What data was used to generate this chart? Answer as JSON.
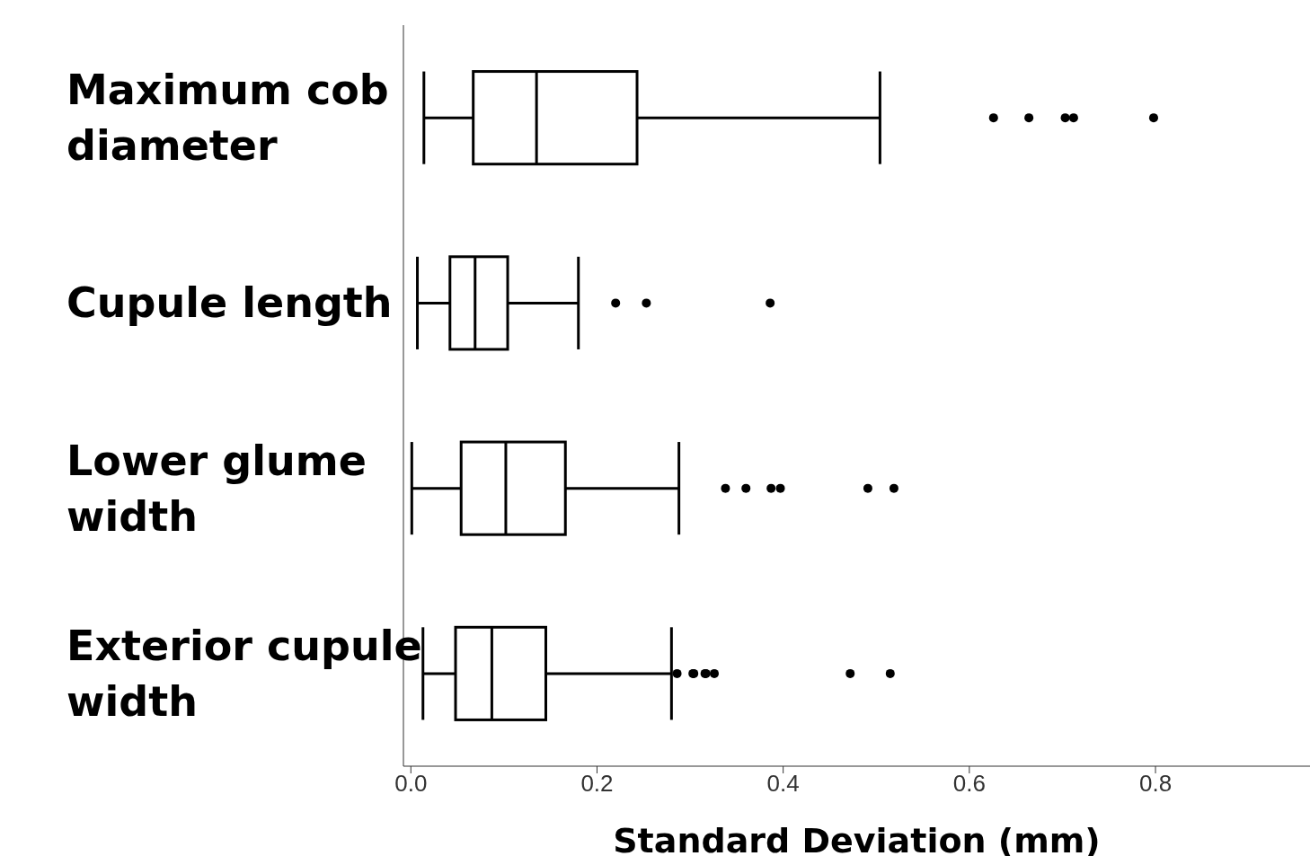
{
  "chart_data": {
    "type": "box",
    "orientation": "horizontal",
    "xlabel": "Standard Deviation (mm)",
    "color": "#000000",
    "categories": [
      "Maximum cob diameter",
      "Cupule length",
      "Lower glume width",
      "Exterior cupule width"
    ],
    "boxes": [
      {
        "low": 0.014,
        "q1": 0.067,
        "median": 0.135,
        "q3": 0.243,
        "high": 0.504,
        "outliers": [
          0.626,
          0.664,
          0.703,
          0.712,
          0.798
        ]
      },
      {
        "low": 0.007,
        "q1": 0.042,
        "median": 0.069,
        "q3": 0.104,
        "high": 0.18,
        "outliers": [
          0.22,
          0.253,
          0.386
        ]
      },
      {
        "low": 0.001,
        "q1": 0.054,
        "median": 0.102,
        "q3": 0.166,
        "high": 0.288,
        "outliers": [
          0.338,
          0.36,
          0.387,
          0.397,
          0.491,
          0.519
        ]
      },
      {
        "low": 0.013,
        "q1": 0.048,
        "median": 0.087,
        "q3": 0.145,
        "high": 0.28,
        "outliers": [
          0.286,
          0.303,
          0.304,
          0.316,
          0.317,
          0.326,
          0.472,
          0.515
        ]
      }
    ],
    "xlim": [
      -0.008,
      0.966
    ],
    "xticks": [
      {
        "value": 0,
        "label": "0.0"
      },
      0.2,
      0.4,
      0.6,
      {
        "value": 0.8,
        "label": "0.8"
      }
    ]
  }
}
